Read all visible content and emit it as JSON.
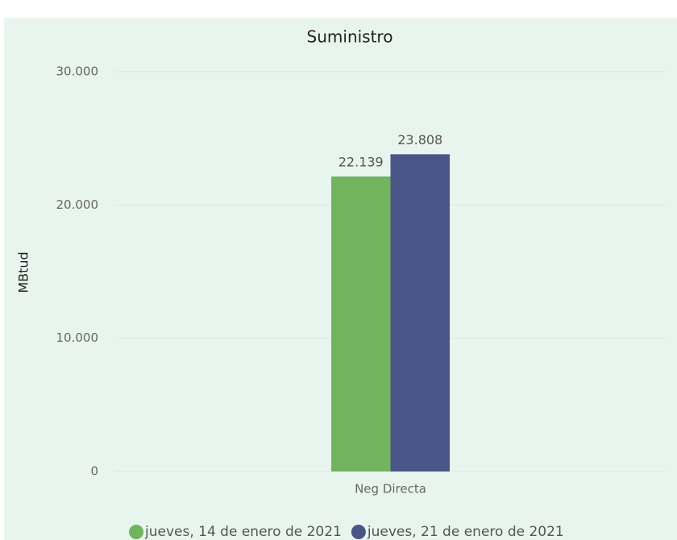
{
  "chart_data": {
    "type": "bar",
    "title": "Suministro",
    "y_label": "MBtud",
    "categories": [
      "Neg Directa"
    ],
    "series": [
      {
        "name": "jueves, 14 de enero de 2021",
        "color": "#72b35e",
        "values": [
          22139
        ],
        "value_labels": [
          "22.139"
        ]
      },
      {
        "name": "jueves, 21 de enero de 2021",
        "color": "#4a5587",
        "values": [
          23808
        ],
        "value_labels": [
          "23.808"
        ]
      }
    ],
    "ylim": [
      0,
      30000
    ],
    "yticks": [
      0,
      {
        "value": 10000,
        "label": "10.000"
      },
      {
        "value": 20000,
        "label": "20.000"
      },
      {
        "value": 30000,
        "label": "30.000"
      }
    ],
    "grid": true,
    "legend": "bottom"
  }
}
